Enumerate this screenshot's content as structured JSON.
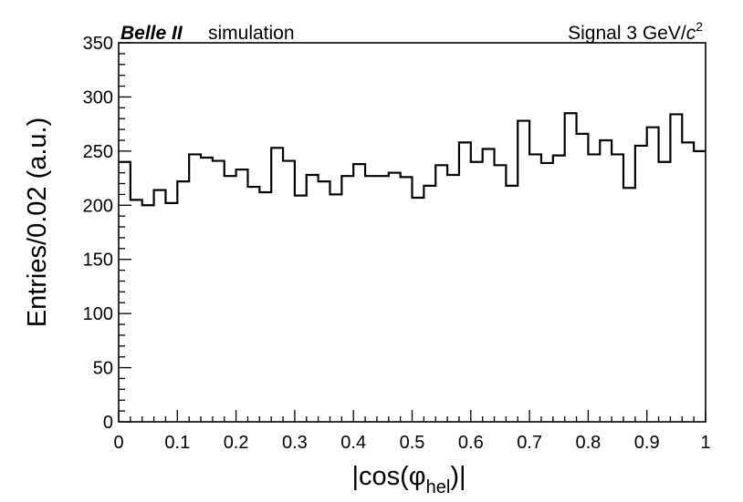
{
  "chart_data": {
    "type": "histogram",
    "title_left": {
      "experiment": "Belle II",
      "label": "simulation"
    },
    "title_right": {
      "prefix": "Signal 3 GeV/",
      "unit_c": "c",
      "unit_exp": "2"
    },
    "xlabel": {
      "prefix": "|cos(φ",
      "sub": "hel",
      "suffix": ")|"
    },
    "ylabel": "Entries/0.02 (a.u.)",
    "xlim": [
      0,
      1
    ],
    "ylim": [
      0,
      350
    ],
    "bin_width": 0.02,
    "x_ticks": [
      "0",
      "0.1",
      "0.2",
      "0.3",
      "0.4",
      "0.5",
      "0.6",
      "0.7",
      "0.8",
      "0.9",
      "1"
    ],
    "y_ticks": [
      "0",
      "50",
      "100",
      "150",
      "200",
      "250",
      "300",
      "350"
    ],
    "bin_edges_start": 0,
    "values": [
      240,
      205,
      200,
      214,
      202,
      222,
      247,
      244,
      241,
      227,
      233,
      217,
      212,
      253,
      241,
      209,
      228,
      222,
      210,
      227,
      238,
      227,
      227,
      230,
      226,
      207,
      218,
      237,
      228,
      258,
      240,
      252,
      237,
      218,
      278,
      247,
      239,
      246,
      285,
      266,
      247,
      260,
      247,
      216,
      255,
      272,
      240,
      284,
      258,
      250
    ],
    "grid": false,
    "line_color": "#000000"
  }
}
